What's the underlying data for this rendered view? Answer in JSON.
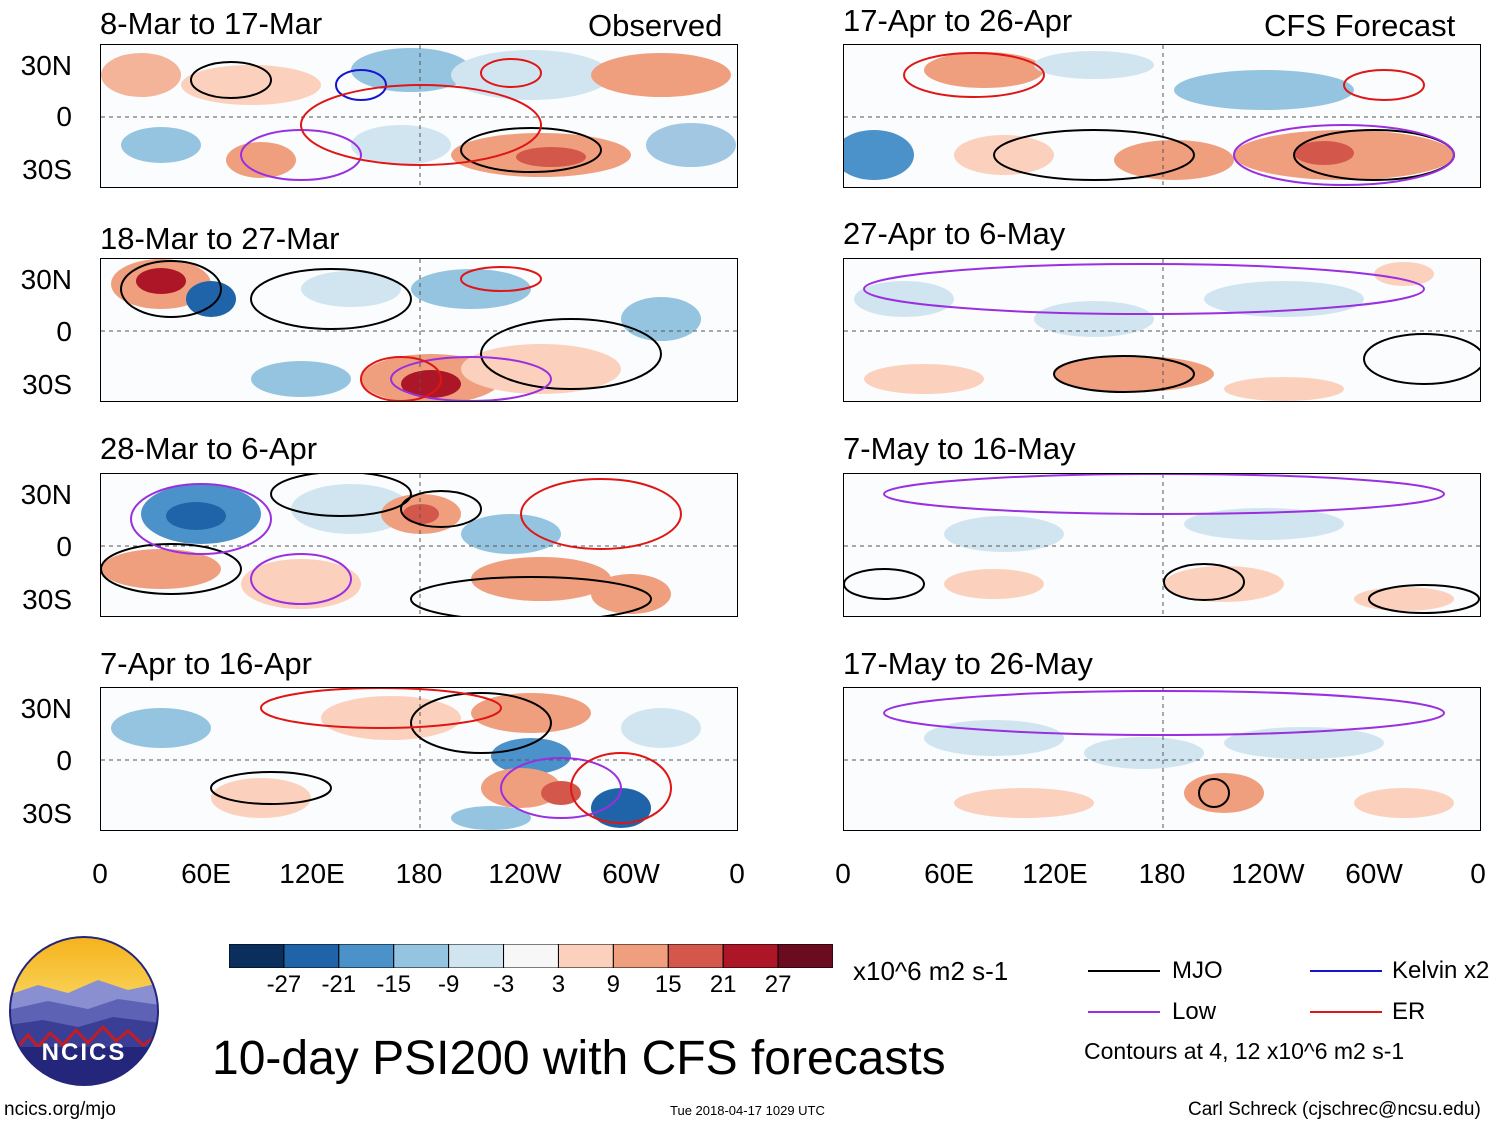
{
  "header": {
    "left_tag": "Observed",
    "right_tag": "CFS Forecast"
  },
  "panels": {
    "left": [
      {
        "title": "8-Mar to 17-Mar"
      },
      {
        "title": "18-Mar to 27-Mar"
      },
      {
        "title": "28-Mar to 6-Apr"
      },
      {
        "title": "7-Apr to 16-Apr"
      }
    ],
    "right": [
      {
        "title": "17-Apr to 26-Apr"
      },
      {
        "title": "27-Apr to 6-May"
      },
      {
        "title": "7-May to 16-May"
      },
      {
        "title": "17-May to 26-May"
      }
    ]
  },
  "axes": {
    "y_ticks": [
      "30N",
      "0",
      "30S"
    ],
    "x_ticks": [
      "0",
      "60E",
      "120E",
      "180",
      "120W",
      "60W",
      "0"
    ]
  },
  "colorbar": {
    "labels": [
      "-27",
      "-21",
      "-15",
      "-9",
      "-3",
      "3",
      "9",
      "15",
      "21",
      "27"
    ],
    "colors": [
      "#0b2f5c",
      "#1f64a8",
      "#4a92c9",
      "#94c4e0",
      "#d1e5f1",
      "#f7f7f7",
      "#fbd1bd",
      "#ef9f7d",
      "#d3584b",
      "#ad1626",
      "#6a0b1f"
    ],
    "units": "x10^6 m2 s-1"
  },
  "legend": {
    "items": [
      {
        "label": "MJO",
        "color": "#000000"
      },
      {
        "label": "Kelvin x2",
        "color": "#1515d0"
      },
      {
        "label": "Low",
        "color": "#9a2fe0"
      },
      {
        "label": "ER",
        "color": "#e01515"
      }
    ],
    "note": "Contours at 4, 12 x10^6 m2 s-1"
  },
  "logo": {
    "text": "NCICS"
  },
  "main_title": "10-day PSI200 with CFS forecasts",
  "footer": {
    "url": "ncics.org/mjo",
    "timestamp": "Tue 2018-04-17 1029 UTC",
    "author": "Carl Schreck (cjschrec@ncsu.edu)"
  }
}
